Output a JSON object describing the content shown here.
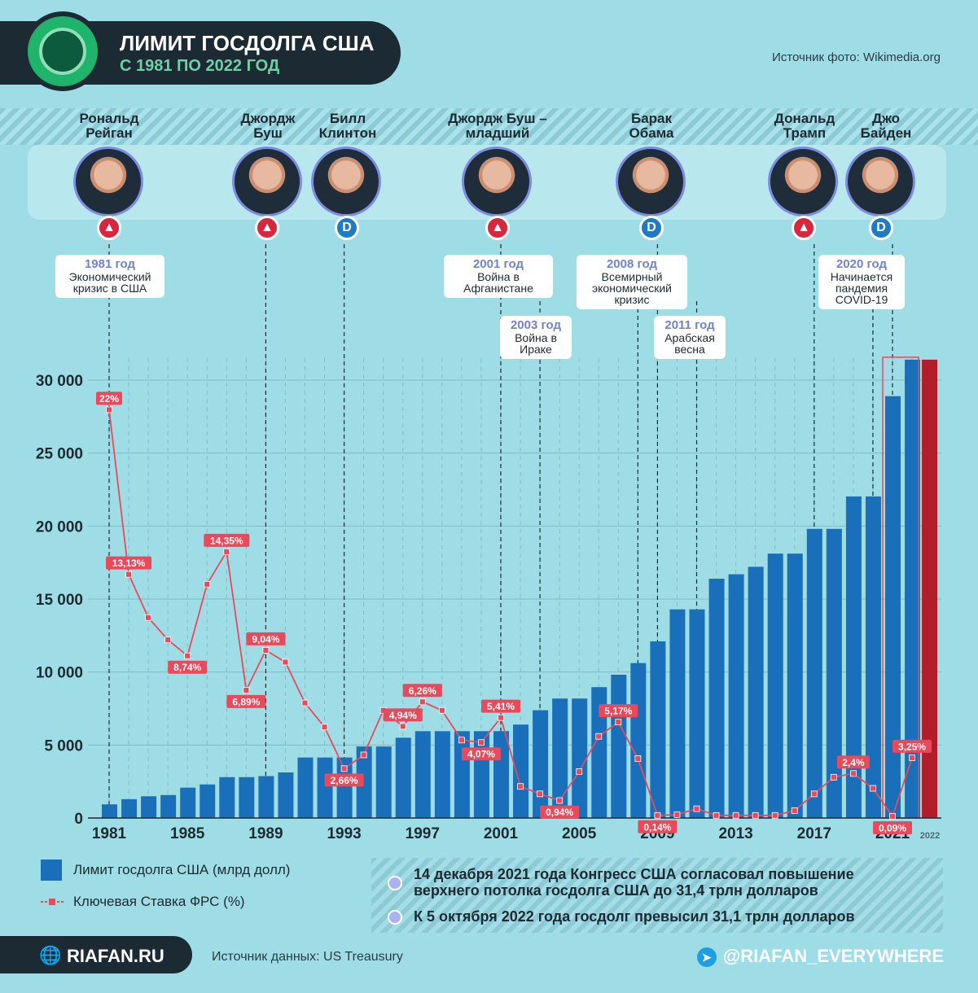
{
  "header": {
    "title": "ЛИМИТ ГОСДОЛГА США",
    "subtitle": "С 1981 ПО 2022 ГОД",
    "photo_source": "Источник фото: Wikimedia.org"
  },
  "presidents": [
    {
      "name_line1": "Рональд",
      "name_line2": "Рейган",
      "party": "R",
      "party_label": ""
    },
    {
      "name_line1": "Джордж",
      "name_line2": "Буш",
      "party": "R",
      "party_label": ""
    },
    {
      "name_line1": "Билл",
      "name_line2": "Клинтон",
      "party": "D",
      "party_label": "D"
    },
    {
      "name_line1": "Джордж Буш –",
      "name_line2": "младший",
      "party": "R",
      "party_label": ""
    },
    {
      "name_line1": "Барак",
      "name_line2": "Обама",
      "party": "D",
      "party_label": "D"
    },
    {
      "name_line1": "Дональд",
      "name_line2": "Трамп",
      "party": "R",
      "party_label": ""
    },
    {
      "name_line1": "Джо",
      "name_line2": "Байден",
      "party": "D",
      "party_label": "D"
    }
  ],
  "events": [
    {
      "year": "1981 год",
      "text": "Экономический кризис в США",
      "x": 1981
    },
    {
      "year": "2001 год",
      "text": "Война в Афганистане",
      "x": 2001
    },
    {
      "year": "2003 год",
      "text": "Война в Ираке",
      "x": 2003
    },
    {
      "year": "2008 год",
      "text": "Всемирный экономический кризис",
      "x": 2008
    },
    {
      "year": "2011 год",
      "text": "Арабская весна",
      "x": 2011
    },
    {
      "year": "2020 год",
      "text": "Начинается пандемия COVID-19",
      "x": 2020
    }
  ],
  "chart_data": {
    "type": "bar",
    "title": "ЛИМИТ ГОСДОЛГА США",
    "ylim": [
      0,
      32000
    ],
    "yticks": [
      0,
      5000,
      10000,
      15000,
      20000,
      25000,
      30000
    ],
    "ytick_labels": [
      "0",
      "5 000",
      "10 000",
      "15 000",
      "20 000",
      "25 000",
      "30 000"
    ],
    "xtick_labels": [
      "1981",
      "1985",
      "1989",
      "1993",
      "1997",
      "2001",
      "2005",
      "2009",
      "2013",
      "2017",
      "2021",
      "2022"
    ],
    "xtick_years": [
      1981,
      1985,
      1989,
      1993,
      1997,
      2001,
      2005,
      2009,
      2013,
      2017,
      2021,
      2022
    ],
    "president_start_years": [
      1981,
      1989,
      1993,
      2001,
      2009,
      2017,
      2021
    ],
    "bar_series": {
      "name": "Лимит госдолга США (млрд долл)",
      "color": "#1a6fba",
      "highlight_color": "#b11e2a",
      "x": [
        1981,
        1982,
        1983,
        1984,
        1985,
        1986,
        1987,
        1988,
        1989,
        1990,
        1991,
        1992,
        1993,
        1994,
        1995,
        1996,
        1997,
        1998,
        1999,
        2000,
        2001,
        2002,
        2003,
        2004,
        2005,
        2006,
        2007,
        2008,
        2009,
        2010,
        2011,
        2012,
        2013,
        2014,
        2015,
        2016,
        2017,
        2018,
        2019,
        2020,
        2021,
        2022,
        2023
      ],
      "values": [
        935,
        1290,
        1490,
        1573,
        2079,
        2300,
        2800,
        2800,
        2870,
        3123,
        4145,
        4145,
        4145,
        4900,
        4900,
        5500,
        5950,
        5950,
        5950,
        5950,
        5950,
        6400,
        7384,
        8184,
        8184,
        8965,
        9815,
        10615,
        12104,
        14294,
        14294,
        16394,
        16699,
        17212,
        18113,
        18113,
        19809,
        19809,
        22030,
        22030,
        28900,
        31400,
        31400
      ]
    },
    "line_series": {
      "name": "Ключевая Ставка ФРС (%)",
      "color": "#e8495b",
      "x": [
        1981,
        1982,
        1983,
        1984,
        1985,
        1986,
        1987,
        1988,
        1989,
        1990,
        1991,
        1992,
        1993,
        1994,
        1995,
        1996,
        1997,
        1998,
        1999,
        2000,
        2001,
        2002,
        2003,
        2004,
        2005,
        2006,
        2007,
        2008,
        2009,
        2010,
        2011,
        2012,
        2013,
        2014,
        2015,
        2016,
        2017,
        2018,
        2019,
        2020,
        2021,
        2022
      ],
      "values": [
        22,
        13.13,
        10.8,
        9.6,
        8.74,
        12.6,
        14.35,
        6.89,
        9.04,
        8.4,
        6.2,
        4.9,
        2.66,
        3.4,
        5.8,
        4.94,
        6.26,
        5.8,
        4.2,
        4.07,
        5.41,
        1.7,
        1.3,
        0.94,
        2.5,
        4.4,
        5.17,
        3.2,
        0.14,
        0.18,
        0.5,
        0.14,
        0.14,
        0.14,
        0.14,
        0.4,
        1.3,
        2.2,
        2.4,
        1.6,
        0.09,
        3.25
      ]
    },
    "line_labels": [
      {
        "x": 1981,
        "label": "22%",
        "pos": "above"
      },
      {
        "x": 1982,
        "label": "13,13%",
        "pos": "above"
      },
      {
        "x": 1985,
        "label": "8,74%",
        "pos": "below"
      },
      {
        "x": 1987,
        "label": "14,35%",
        "pos": "above"
      },
      {
        "x": 1988,
        "label": "6,89%",
        "pos": "below"
      },
      {
        "x": 1989,
        "label": "9,04%",
        "pos": "above"
      },
      {
        "x": 1993,
        "label": "2,66%",
        "pos": "below"
      },
      {
        "x": 1996,
        "label": "4,94%",
        "pos": "above"
      },
      {
        "x": 1997,
        "label": "6,26%",
        "pos": "above"
      },
      {
        "x": 2000,
        "label": "4,07%",
        "pos": "below"
      },
      {
        "x": 2001,
        "label": "5,41%",
        "pos": "above"
      },
      {
        "x": 2004,
        "label": "0,94%",
        "pos": "below"
      },
      {
        "x": 2007,
        "label": "5,17%",
        "pos": "above"
      },
      {
        "x": 2009,
        "label": "0,14%",
        "pos": "below"
      },
      {
        "x": 2019,
        "label": "2,4%",
        "pos": "above"
      },
      {
        "x": 2021,
        "label": "0,09%",
        "pos": "below"
      },
      {
        "x": 2022,
        "label": "3,25%",
        "pos": "above"
      }
    ]
  },
  "legend": {
    "bars": "Лимит госдолга США (млрд долл)",
    "line": "Ключевая Ставка ФРС (%)"
  },
  "notes": [
    {
      "line1": "14 декабря 2021 года Конгресс США согласовал повышение",
      "line2": "верхнего потолка госдолга США до 31,4 трлн долларов"
    },
    {
      "line1": "К 5 октября 2022 года госдолг превысил 31,1 трлн долларов",
      "line2": ""
    }
  ],
  "footer": {
    "site": "RIAFAN.RU",
    "data_source": "Источник данных: US Treausury",
    "social": "@RIAFAN_EVERYWHERE"
  }
}
